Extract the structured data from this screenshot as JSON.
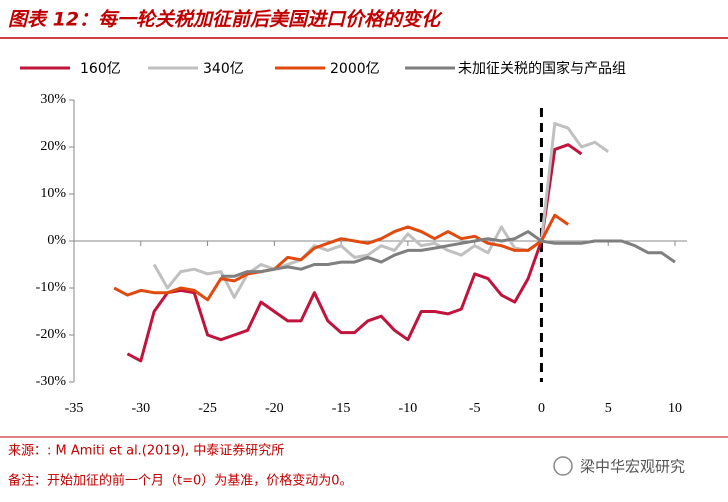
{
  "chart_data": {
    "type": "line",
    "title": "图表 12：每一轮关税加征前后美国进口价格的变化",
    "source": "来源：: M Amiti et al.(2019), 中泰证券研究所",
    "note": "备注：开始加征的前一个月（t=0）为基准，价格变动为0。",
    "watermark": "梁中华宏观研究",
    "xlim": [
      -35,
      10
    ],
    "xticks": [
      -35,
      -30,
      -25,
      -20,
      -15,
      -10,
      -5,
      0,
      5,
      10
    ],
    "ylim": [
      -30,
      30
    ],
    "yticks": [
      {
        "value": -30,
        "label": "-30%"
      },
      {
        "value": -20,
        "label": "-20%"
      },
      {
        "value": -10,
        "label": "-10%"
      },
      {
        "value": 0,
        "label": "0%"
      },
      {
        "value": 10,
        "label": "10%"
      },
      {
        "value": 20,
        "label": "20%"
      },
      {
        "value": 30,
        "label": "30%"
      }
    ],
    "vline": 0,
    "series": [
      {
        "name": "160亿",
        "color": "#c0143c",
        "x": [
          -31,
          -30,
          -29,
          -28,
          -27,
          -26,
          -25,
          -24,
          -23,
          -22,
          -21,
          -20,
          -19,
          -18,
          -17,
          -16,
          -15,
          -14,
          -13,
          -12,
          -11,
          -10,
          -9,
          -8,
          -7,
          -6,
          -5,
          -4,
          -3,
          -2,
          -1,
          0,
          1,
          2,
          3
        ],
        "values": [
          -24,
          -25.5,
          -15,
          -11,
          -10.5,
          -11,
          -20,
          -21,
          -20,
          -19,
          -13,
          -15,
          -17,
          -17,
          -11,
          -17,
          -19.5,
          -19.5,
          -17,
          -16,
          -19,
          -21,
          -15,
          -15,
          -15.5,
          -14.5,
          -7,
          -8,
          -11.5,
          -13,
          -8,
          0,
          19.5,
          20.5,
          18.5
        ]
      },
      {
        "name": "340亿",
        "color": "#c0c0c0",
        "x": [
          -29,
          -28,
          -27,
          -26,
          -25,
          -24,
          -23,
          -22,
          -21,
          -20,
          -19,
          -18,
          -17,
          -16,
          -15,
          -14,
          -13,
          -12,
          -11,
          -10,
          -9,
          -8,
          -7,
          -6,
          -5,
          -4,
          -3,
          -2,
          -1,
          0,
          1,
          2,
          3,
          4,
          5
        ],
        "values": [
          -5,
          -10,
          -6.5,
          -6,
          -7,
          -6.5,
          -12,
          -7,
          -5,
          -6,
          -5,
          -4,
          -1,
          -2,
          -1,
          -3.5,
          -3,
          -1,
          -2,
          1.5,
          -1,
          -0.5,
          -2,
          -3,
          -1,
          -2.5,
          3,
          -1.5,
          -2,
          0,
          25,
          24,
          20,
          21,
          19
        ]
      },
      {
        "name": "2000亿",
        "color": "#e04a0e",
        "x": [
          -32,
          -31,
          -30,
          -29,
          -28,
          -27,
          -26,
          -25,
          -24,
          -23,
          -22,
          -21,
          -20,
          -19,
          -18,
          -17,
          -16,
          -15,
          -14,
          -13,
          -12,
          -11,
          -10,
          -9,
          -8,
          -7,
          -6,
          -5,
          -4,
          -3,
          -2,
          -1,
          0,
          1,
          2
        ],
        "values": [
          -10,
          -11.5,
          -10.5,
          -11,
          -11,
          -10,
          -10.5,
          -12.5,
          -8,
          -8.5,
          -7,
          -6.5,
          -6,
          -3.5,
          -4,
          -1.5,
          -0.5,
          0.5,
          0,
          -0.5,
          0.5,
          2,
          3,
          2,
          0.5,
          2,
          0.5,
          1,
          -0.5,
          -1,
          -2,
          -2,
          0,
          5.5,
          3.5
        ]
      },
      {
        "name": "未加征关税的国家与产品组",
        "color": "#7f7f7f",
        "x": [
          -24,
          -23,
          -22,
          -21,
          -20,
          -19,
          -18,
          -17,
          -16,
          -15,
          -14,
          -13,
          -12,
          -11,
          -10,
          -9,
          -8,
          -7,
          -6,
          -5,
          -4,
          -3,
          -2,
          -1,
          0,
          1,
          2,
          3,
          4,
          5,
          6,
          7,
          8,
          9,
          10
        ],
        "values": [
          -7.5,
          -7.5,
          -6.5,
          -6.5,
          -6,
          -5.5,
          -6,
          -5,
          -5,
          -4.5,
          -4.5,
          -3.5,
          -4.5,
          -3,
          -2,
          -2,
          -1.5,
          -1,
          -0.5,
          0,
          0.5,
          0,
          0.5,
          2,
          0,
          -0.5,
          -0.5,
          -0.5,
          0,
          0,
          0,
          -1,
          -2.5,
          -2.5,
          -4.5
        ]
      }
    ]
  }
}
